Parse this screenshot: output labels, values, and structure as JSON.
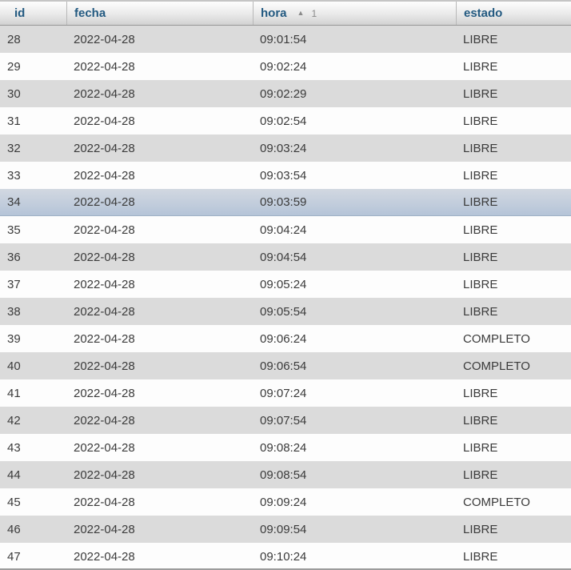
{
  "table": {
    "columns": [
      {
        "key": "id",
        "label": "id",
        "sorted": false
      },
      {
        "key": "fecha",
        "label": "fecha",
        "sorted": false
      },
      {
        "key": "hora",
        "label": "hora",
        "sorted": true,
        "sort_glyph": "▲",
        "sort_direction": "ascending",
        "sort_order": "1"
      },
      {
        "key": "estado",
        "label": "estado",
        "sorted": false
      }
    ],
    "highlighted_row_id": "34",
    "rows": [
      {
        "id": "28",
        "fecha": "2022-04-28",
        "hora": "09:01:54",
        "estado": "LIBRE"
      },
      {
        "id": "29",
        "fecha": "2022-04-28",
        "hora": "09:02:24",
        "estado": "LIBRE"
      },
      {
        "id": "30",
        "fecha": "2022-04-28",
        "hora": "09:02:29",
        "estado": "LIBRE"
      },
      {
        "id": "31",
        "fecha": "2022-04-28",
        "hora": "09:02:54",
        "estado": "LIBRE"
      },
      {
        "id": "32",
        "fecha": "2022-04-28",
        "hora": "09:03:24",
        "estado": "LIBRE"
      },
      {
        "id": "33",
        "fecha": "2022-04-28",
        "hora": "09:03:54",
        "estado": "LIBRE"
      },
      {
        "id": "34",
        "fecha": "2022-04-28",
        "hora": "09:03:59",
        "estado": "LIBRE"
      },
      {
        "id": "35",
        "fecha": "2022-04-28",
        "hora": "09:04:24",
        "estado": "LIBRE"
      },
      {
        "id": "36",
        "fecha": "2022-04-28",
        "hora": "09:04:54",
        "estado": "LIBRE"
      },
      {
        "id": "37",
        "fecha": "2022-04-28",
        "hora": "09:05:24",
        "estado": "LIBRE"
      },
      {
        "id": "38",
        "fecha": "2022-04-28",
        "hora": "09:05:54",
        "estado": "LIBRE"
      },
      {
        "id": "39",
        "fecha": "2022-04-28",
        "hora": "09:06:24",
        "estado": "COMPLETO"
      },
      {
        "id": "40",
        "fecha": "2022-04-28",
        "hora": "09:06:54",
        "estado": "COMPLETO"
      },
      {
        "id": "41",
        "fecha": "2022-04-28",
        "hora": "09:07:24",
        "estado": "LIBRE"
      },
      {
        "id": "42",
        "fecha": "2022-04-28",
        "hora": "09:07:54",
        "estado": "LIBRE"
      },
      {
        "id": "43",
        "fecha": "2022-04-28",
        "hora": "09:08:24",
        "estado": "LIBRE"
      },
      {
        "id": "44",
        "fecha": "2022-04-28",
        "hora": "09:08:54",
        "estado": "LIBRE"
      },
      {
        "id": "45",
        "fecha": "2022-04-28",
        "hora": "09:09:24",
        "estado": "COMPLETO"
      },
      {
        "id": "46",
        "fecha": "2022-04-28",
        "hora": "09:09:54",
        "estado": "LIBRE"
      },
      {
        "id": "47",
        "fecha": "2022-04-28",
        "hora": "09:10:24",
        "estado": "LIBRE"
      }
    ]
  },
  "colors": {
    "header_text": "#235a81",
    "row_alt_background": "#dbdbdb",
    "row_background": "#fdfdfd",
    "highlight_top": "#d2d8e1",
    "highlight_bottom": "#b5c4d8",
    "body_text": "#3b3b3b"
  }
}
